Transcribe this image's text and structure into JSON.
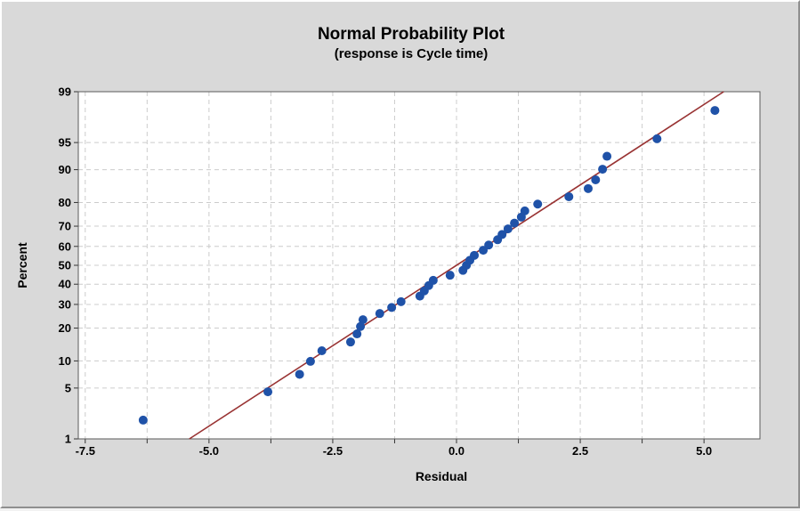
{
  "window": {
    "background": "#d9d9d9",
    "plot_background": "#ffffff"
  },
  "chart_data": {
    "type": "scatter",
    "title": "Normal Probability Plot",
    "subtitle": "(response is Cycle time)",
    "xlabel": "Residual",
    "ylabel": "Percent",
    "y_scale": "probit",
    "grid": "dashed, light gray, at all x ticks and y ticks",
    "xlim": [
      -7.64,
      6.13
    ],
    "ylim": [
      1,
      99
    ],
    "x_tick_values": [
      -7.5,
      -5.0,
      -2.5,
      0.0,
      2.5,
      5.0
    ],
    "x_tick_labels": [
      "-7.5",
      "-5.0",
      "-2.5",
      "0.0",
      "2.5",
      "5.0"
    ],
    "x_minor_tick_values": [
      -6.25,
      -3.75,
      -1.25,
      1.25,
      3.75
    ],
    "y_tick_values": [
      1,
      5,
      10,
      20,
      30,
      40,
      50,
      60,
      70,
      80,
      90,
      95,
      99
    ],
    "y_tick_labels": [
      "1",
      "5",
      "10",
      "20",
      "30",
      "40",
      "50",
      "60",
      "70",
      "80",
      "90",
      "95",
      "99"
    ],
    "marker_color": "#1f52a8",
    "line_color": "#993333",
    "gridline_color": "#cccccc",
    "points": [
      {
        "residual": -6.33,
        "percent": 1.9
      },
      {
        "residual": -3.81,
        "percent": 4.5
      },
      {
        "residual": -3.17,
        "percent": 7.2
      },
      {
        "residual": -2.95,
        "percent": 9.9
      },
      {
        "residual": -2.72,
        "percent": 12.6
      },
      {
        "residual": -2.14,
        "percent": 15.2
      },
      {
        "residual": -2.01,
        "percent": 17.9
      },
      {
        "residual": -1.94,
        "percent": 20.6
      },
      {
        "residual": -1.89,
        "percent": 23.3
      },
      {
        "residual": -1.55,
        "percent": 25.9
      },
      {
        "residual": -1.31,
        "percent": 28.6
      },
      {
        "residual": -1.12,
        "percent": 31.3
      },
      {
        "residual": -0.74,
        "percent": 34.0
      },
      {
        "residual": -0.65,
        "percent": 36.6
      },
      {
        "residual": -0.56,
        "percent": 39.3
      },
      {
        "residual": -0.47,
        "percent": 42.0
      },
      {
        "residual": -0.13,
        "percent": 44.7
      },
      {
        "residual": 0.13,
        "percent": 47.3
      },
      {
        "residual": 0.2,
        "percent": 50.0
      },
      {
        "residual": 0.27,
        "percent": 52.7
      },
      {
        "residual": 0.36,
        "percent": 55.3
      },
      {
        "residual": 0.54,
        "percent": 58.0
      },
      {
        "residual": 0.65,
        "percent": 60.7
      },
      {
        "residual": 0.83,
        "percent": 63.4
      },
      {
        "residual": 0.92,
        "percent": 66.0
      },
      {
        "residual": 1.04,
        "percent": 68.7
      },
      {
        "residual": 1.17,
        "percent": 71.4
      },
      {
        "residual": 1.31,
        "percent": 74.1
      },
      {
        "residual": 1.38,
        "percent": 76.7
      },
      {
        "residual": 1.64,
        "percent": 79.4
      },
      {
        "residual": 2.27,
        "percent": 82.1
      },
      {
        "residual": 2.66,
        "percent": 84.8
      },
      {
        "residual": 2.81,
        "percent": 87.4
      },
      {
        "residual": 2.95,
        "percent": 90.1
      },
      {
        "residual": 3.04,
        "percent": 92.8
      },
      {
        "residual": 4.05,
        "percent": 95.5
      },
      {
        "residual": 5.22,
        "percent": 98.1
      }
    ],
    "fit_line": {
      "mean": 0.0,
      "sd": 2.32,
      "spans_percent": [
        1,
        99
      ]
    }
  }
}
